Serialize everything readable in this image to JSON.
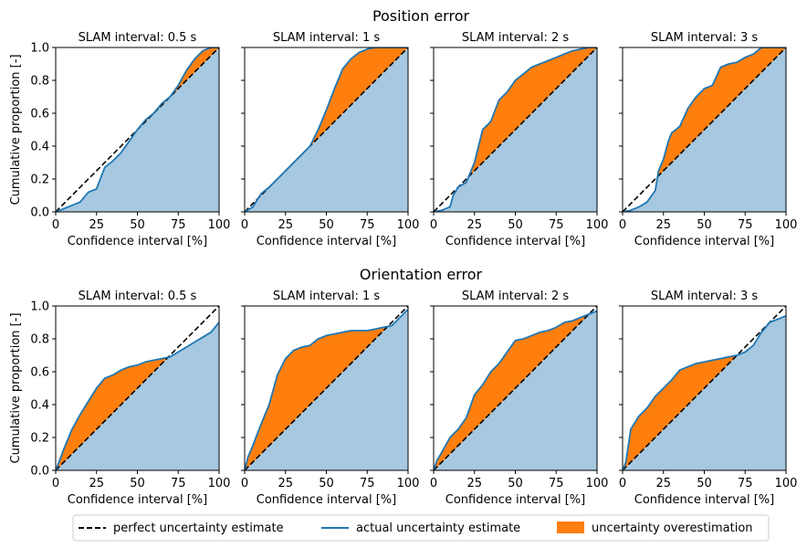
{
  "figure": {
    "row_titles": [
      "Position error",
      "Orientation error"
    ],
    "xlabel": "Confidence interval [%]",
    "ylabel": "Cumulative proportion [-]",
    "x_ticks": [
      "0",
      "25",
      "50",
      "75",
      "100"
    ],
    "y_ticks": [
      "0.0",
      "0.2",
      "0.4",
      "0.6",
      "0.8",
      "1.0"
    ]
  },
  "legend": {
    "placement": "bottom-center",
    "entries": [
      {
        "label": "perfect uncertainty estimate",
        "style": "dashed-line",
        "color": "#000000"
      },
      {
        "label": "actual uncertainty estimate",
        "style": "line",
        "color": "#1f77b4"
      },
      {
        "label": "uncertainty overestimation",
        "style": "patch",
        "color": "#ff7f0e"
      }
    ]
  },
  "colors": {
    "actual_line": "#1f77b4",
    "area_fill": "#a6c8e0",
    "overestimation": "#ff7f0e",
    "perfect_line": "#000000"
  },
  "chart_data": [
    {
      "type": "line",
      "row": 0,
      "title": "SLAM interval: 0.5 s",
      "xlim": [
        0,
        100
      ],
      "ylim": [
        0,
        1
      ],
      "x": [
        0,
        5,
        10,
        15,
        20,
        25,
        30,
        35,
        40,
        45,
        50,
        55,
        60,
        65,
        70,
        75,
        80,
        85,
        90,
        95,
        100
      ],
      "y": [
        0,
        0.02,
        0.04,
        0.06,
        0.12,
        0.14,
        0.27,
        0.31,
        0.36,
        0.43,
        0.5,
        0.56,
        0.6,
        0.66,
        0.7,
        0.77,
        0.86,
        0.93,
        0.98,
        1.0,
        1.0
      ]
    },
    {
      "type": "line",
      "row": 0,
      "title": "SLAM interval: 1 s",
      "xlim": [
        0,
        100
      ],
      "ylim": [
        0,
        1
      ],
      "x": [
        0,
        5,
        10,
        15,
        20,
        25,
        30,
        35,
        40,
        45,
        50,
        55,
        60,
        65,
        70,
        75,
        80,
        85,
        90,
        95,
        100
      ],
      "y": [
        0,
        0.03,
        0.11,
        0.15,
        0.2,
        0.25,
        0.3,
        0.35,
        0.4,
        0.5,
        0.62,
        0.75,
        0.87,
        0.93,
        0.97,
        0.99,
        1.0,
        1.0,
        1.0,
        1.0,
        1.0
      ]
    },
    {
      "type": "line",
      "row": 0,
      "title": "SLAM interval: 2 s",
      "xlim": [
        0,
        100
      ],
      "ylim": [
        0,
        1
      ],
      "x": [
        0,
        5,
        10,
        12,
        15,
        20,
        25,
        30,
        35,
        40,
        45,
        50,
        55,
        60,
        65,
        70,
        75,
        80,
        85,
        90,
        95,
        100
      ],
      "y": [
        0,
        0.01,
        0.03,
        0.1,
        0.15,
        0.18,
        0.3,
        0.5,
        0.55,
        0.68,
        0.73,
        0.8,
        0.84,
        0.88,
        0.9,
        0.92,
        0.94,
        0.96,
        0.98,
        0.99,
        1.0,
        1.0
      ]
    },
    {
      "type": "line",
      "row": 0,
      "title": "SLAM interval: 3 s",
      "xlim": [
        0,
        100
      ],
      "ylim": [
        0,
        1
      ],
      "x": [
        0,
        5,
        10,
        15,
        20,
        22,
        25,
        28,
        30,
        35,
        40,
        45,
        50,
        55,
        60,
        65,
        70,
        75,
        80,
        85,
        90,
        95,
        100
      ],
      "y": [
        0,
        0.01,
        0.03,
        0.06,
        0.13,
        0.25,
        0.32,
        0.43,
        0.48,
        0.52,
        0.63,
        0.7,
        0.75,
        0.77,
        0.88,
        0.9,
        0.91,
        0.94,
        0.96,
        1.0,
        1.0,
        1.0,
        1.0
      ]
    },
    {
      "type": "line",
      "row": 1,
      "title": "SLAM interval: 0.5 s",
      "xlim": [
        0,
        100
      ],
      "ylim": [
        0,
        1
      ],
      "x": [
        0,
        2,
        5,
        10,
        15,
        20,
        25,
        30,
        35,
        40,
        45,
        50,
        55,
        60,
        65,
        70,
        75,
        80,
        85,
        90,
        95,
        100
      ],
      "y": [
        0,
        0.05,
        0.13,
        0.25,
        0.34,
        0.42,
        0.5,
        0.56,
        0.58,
        0.61,
        0.63,
        0.64,
        0.66,
        0.67,
        0.68,
        0.69,
        0.72,
        0.75,
        0.78,
        0.81,
        0.84,
        0.9
      ]
    },
    {
      "type": "line",
      "row": 1,
      "title": "SLAM interval: 1 s",
      "xlim": [
        0,
        100
      ],
      "ylim": [
        0,
        1
      ],
      "x": [
        0,
        2,
        5,
        10,
        15,
        20,
        25,
        30,
        35,
        40,
        45,
        50,
        55,
        60,
        65,
        70,
        75,
        80,
        85,
        90,
        95,
        100
      ],
      "y": [
        0,
        0.08,
        0.15,
        0.28,
        0.4,
        0.58,
        0.68,
        0.73,
        0.75,
        0.76,
        0.8,
        0.82,
        0.83,
        0.84,
        0.85,
        0.85,
        0.85,
        0.86,
        0.87,
        0.88,
        0.93,
        0.98
      ]
    },
    {
      "type": "line",
      "row": 1,
      "title": "SLAM interval: 2 s",
      "xlim": [
        0,
        100
      ],
      "ylim": [
        0,
        1
      ],
      "x": [
        0,
        2,
        5,
        10,
        15,
        20,
        25,
        30,
        35,
        40,
        45,
        50,
        55,
        60,
        65,
        70,
        75,
        80,
        85,
        90,
        95,
        100
      ],
      "y": [
        0,
        0.06,
        0.11,
        0.2,
        0.25,
        0.32,
        0.46,
        0.52,
        0.6,
        0.65,
        0.72,
        0.79,
        0.8,
        0.82,
        0.84,
        0.85,
        0.87,
        0.9,
        0.91,
        0.93,
        0.95,
        0.97
      ]
    },
    {
      "type": "line",
      "row": 1,
      "title": "SLAM interval: 3 s",
      "xlim": [
        0,
        100
      ],
      "ylim": [
        0,
        1
      ],
      "x": [
        0,
        2,
        5,
        10,
        15,
        20,
        25,
        30,
        35,
        40,
        45,
        50,
        55,
        60,
        65,
        70,
        75,
        80,
        85,
        90,
        95,
        100
      ],
      "y": [
        0,
        0.05,
        0.25,
        0.33,
        0.38,
        0.45,
        0.5,
        0.55,
        0.61,
        0.63,
        0.65,
        0.66,
        0.67,
        0.68,
        0.69,
        0.7,
        0.72,
        0.76,
        0.84,
        0.9,
        0.92,
        0.94
      ]
    }
  ]
}
